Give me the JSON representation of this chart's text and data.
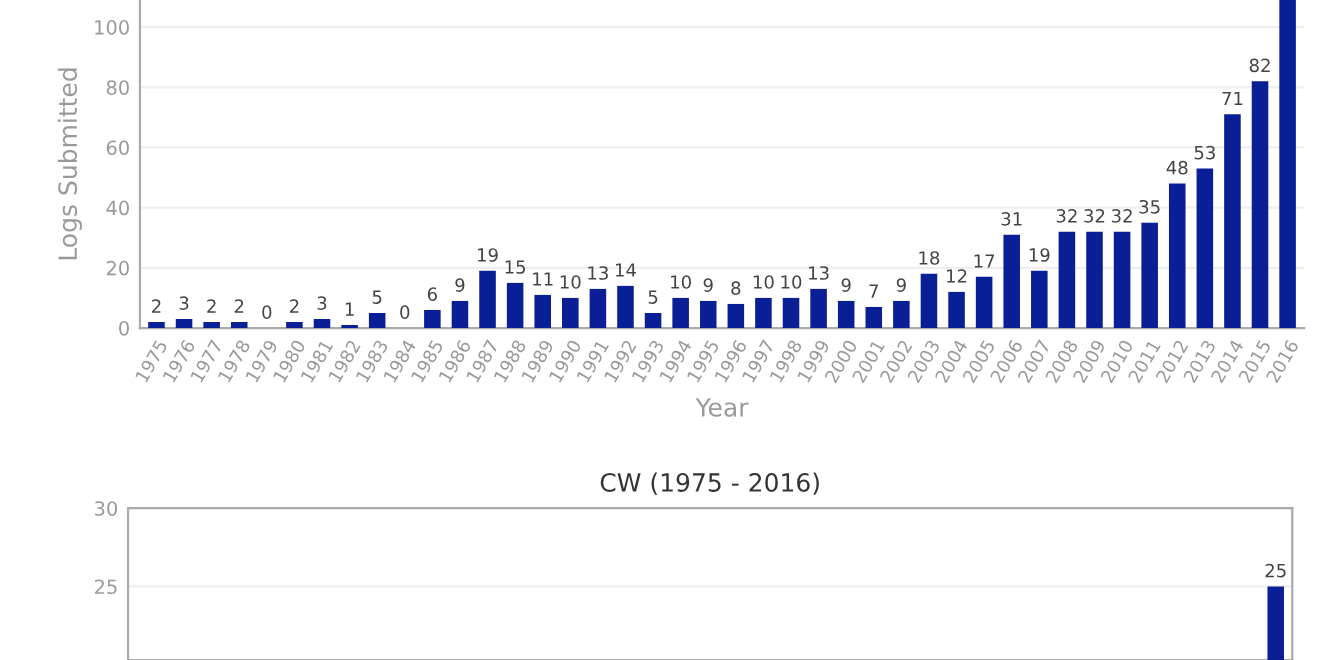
{
  "chart_data": [
    {
      "type": "bar",
      "xlabel": "Year",
      "ylabel": "Logs Submitted",
      "categories": [
        "1975",
        "1976",
        "1977",
        "1978",
        "1979",
        "1980",
        "1981",
        "1982",
        "1983",
        "1984",
        "1985",
        "1986",
        "1987",
        "1988",
        "1989",
        "1990",
        "1991",
        "1992",
        "1993",
        "1994",
        "1995",
        "1996",
        "1997",
        "1998",
        "1999",
        "2000",
        "2001",
        "2002",
        "2003",
        "2004",
        "2005",
        "2006",
        "2007",
        "2008",
        "2009",
        "2010",
        "2011",
        "2012",
        "2013",
        "2014",
        "2015",
        "2016"
      ],
      "values": [
        2,
        3,
        2,
        2,
        0,
        2,
        3,
        1,
        5,
        0,
        6,
        9,
        19,
        15,
        11,
        10,
        13,
        14,
        5,
        10,
        9,
        8,
        10,
        10,
        13,
        9,
        7,
        9,
        18,
        12,
        17,
        31,
        19,
        32,
        32,
        32,
        35,
        48,
        53,
        71,
        82,
        109
      ],
      "value_labels": [
        "2",
        "3",
        "2",
        "2",
        "0",
        "2",
        "3",
        "1",
        "5",
        "0",
        "6",
        "9",
        "19",
        "15",
        "11",
        "10",
        "13",
        "14",
        "5",
        "10",
        "9",
        "8",
        "10",
        "10",
        "13",
        "9",
        "7",
        "9",
        "18",
        "12",
        "17",
        "31",
        "19",
        "32",
        "32",
        "32",
        "35",
        "48",
        "53",
        "71",
        "82",
        null
      ],
      "color": "#0a1f96",
      "ylim": [
        0,
        109
      ],
      "yticks": [
        0,
        20,
        40,
        60,
        80,
        100
      ],
      "grid": "y"
    },
    {
      "type": "bar",
      "title": "CW (1975 - 2016)",
      "categories": [
        null,
        null,
        null,
        null,
        null,
        null,
        null,
        null,
        null,
        null,
        null,
        null,
        null,
        null,
        null,
        null,
        null,
        null,
        null,
        null,
        null,
        null,
        null,
        null,
        null,
        null,
        null,
        null,
        null,
        null,
        null,
        null,
        null,
        null,
        null,
        null,
        null,
        null,
        null,
        null,
        null,
        null
      ],
      "values": [
        null,
        null,
        null,
        null,
        null,
        null,
        null,
        null,
        null,
        null,
        null,
        null,
        null,
        null,
        null,
        null,
        null,
        null,
        null,
        null,
        null,
        null,
        null,
        null,
        null,
        null,
        null,
        null,
        null,
        null,
        null,
        null,
        null,
        null,
        null,
        null,
        null,
        null,
        null,
        null,
        null,
        25
      ],
      "value_labels": [
        null,
        null,
        null,
        null,
        null,
        null,
        null,
        null,
        null,
        null,
        null,
        null,
        null,
        null,
        null,
        null,
        null,
        null,
        null,
        null,
        null,
        null,
        null,
        null,
        null,
        null,
        null,
        null,
        null,
        null,
        null,
        null,
        null,
        null,
        null,
        null,
        null,
        null,
        null,
        null,
        null,
        "25"
      ],
      "color": "#0a1f96",
      "ylim": [
        20.3,
        30
      ],
      "yticks": [
        25,
        30
      ],
      "grid": "y",
      "tick_labels": "y"
    }
  ]
}
